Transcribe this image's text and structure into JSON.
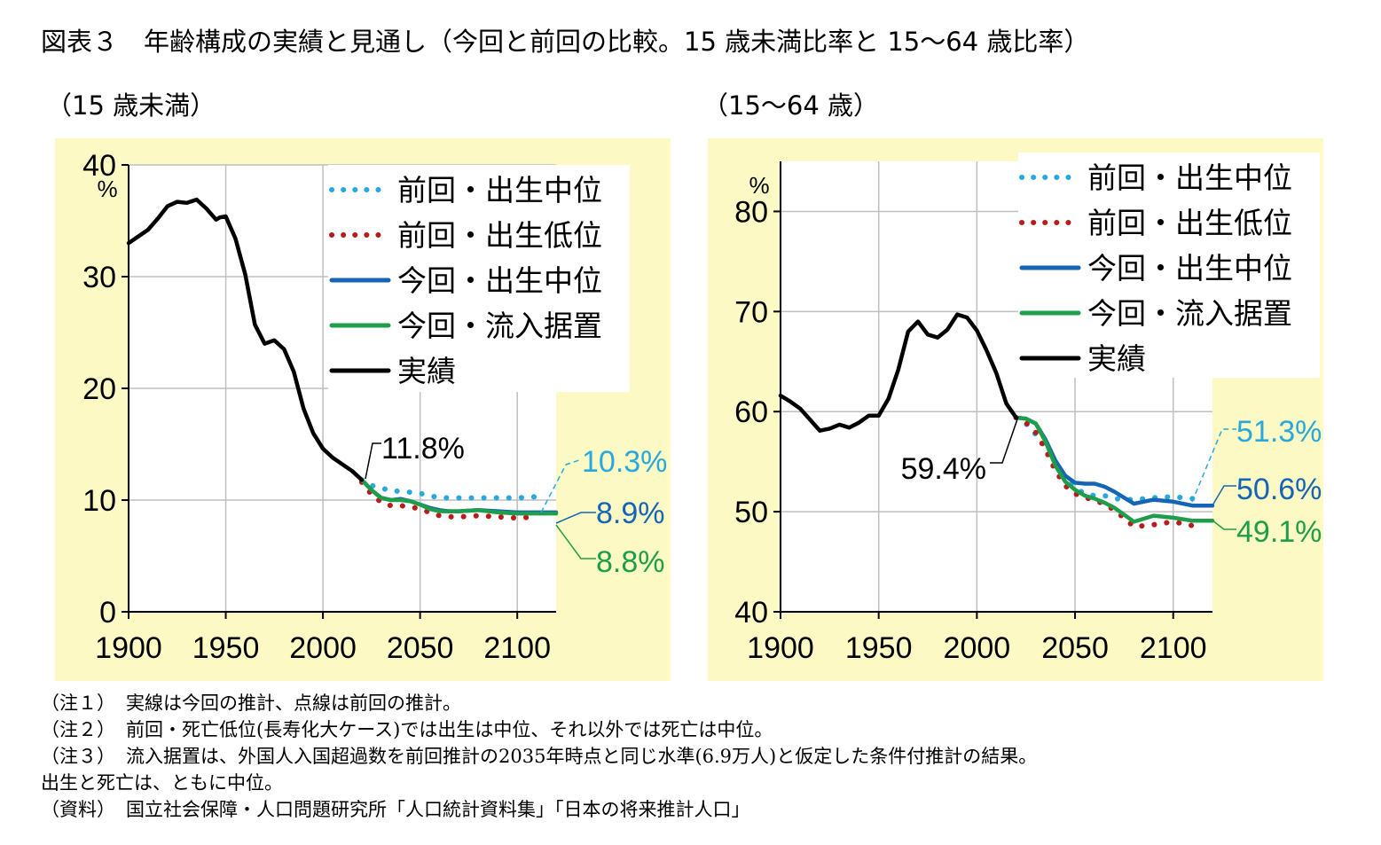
{
  "title": "図表３　年齢構成の実績と見通し（今回と前回の比較。15 歳未満比率と 15～64 歳比率）",
  "notes": [
    {
      "tag": "（注１）",
      "text": "実線は今回の推計、点線は前回の推計。"
    },
    {
      "tag": "（注２）",
      "text": "前回・死亡低位(長寿化大ケース)では出生は中位、それ以外では死亡は中位。"
    },
    {
      "tag": "（注３）",
      "text": "流入据置は、外国人入国超過数を前回推計の2035年時点と同じ水準(6.9万人)と仮定した条件付推計の結果。",
      "cont": "出生と死亡は、ともに中位。"
    },
    {
      "tag": "（資料）",
      "text": "国立社会保障・人口問題研究所「人口統計資料集」「日本の将来推計人口」"
    }
  ],
  "colors": {
    "panel_bg": "#fdf9c4",
    "prev_mid": "#29a8e0",
    "prev_low": "#b71c1c",
    "new_mid": "#1565b7",
    "new_fixed": "#1e9e4a",
    "actual": "#000000"
  },
  "chart_data": [
    {
      "type": "line",
      "title": "（15 歳未満）",
      "ylabel": "%",
      "xlim": [
        1900,
        2120
      ],
      "ylim": [
        0,
        40
      ],
      "xticks": [
        1900,
        1950,
        2000,
        2050,
        2100
      ],
      "yticks": [
        0,
        10,
        20,
        30,
        40
      ],
      "legend": [
        "前回・出生中位",
        "前回・出生低位",
        "今回・出生中位",
        "今回・流入据置",
        "実績"
      ],
      "legend_position": "top-right",
      "series": [
        {
          "name": "実績",
          "style": "solid",
          "color": "#000000",
          "x": [
            1900,
            1905,
            1910,
            1915,
            1920,
            1925,
            1930,
            1935,
            1940,
            1945,
            1947,
            1950,
            1955,
            1960,
            1965,
            1970,
            1975,
            1980,
            1985,
            1990,
            1995,
            2000,
            2005,
            2010,
            2015,
            2020
          ],
          "y": [
            33.0,
            33.6,
            34.2,
            35.2,
            36.3,
            36.7,
            36.6,
            36.9,
            36.1,
            35.1,
            35.3,
            35.4,
            33.4,
            30.2,
            25.7,
            24.0,
            24.3,
            23.5,
            21.5,
            18.2,
            16.0,
            14.6,
            13.8,
            13.2,
            12.6,
            11.8
          ]
        },
        {
          "name": "前回・出生中位",
          "style": "dotted",
          "color": "#29a8e0",
          "x": [
            2020,
            2025,
            2030,
            2035,
            2040,
            2045,
            2050,
            2055,
            2060,
            2065,
            2070,
            2080,
            2090,
            2100,
            2110
          ],
          "y": [
            11.8,
            11.3,
            11.1,
            10.8,
            10.8,
            10.7,
            10.6,
            10.4,
            10.2,
            10.2,
            10.2,
            10.2,
            10.2,
            10.2,
            10.3
          ]
        },
        {
          "name": "前回・出生低位",
          "style": "dotted",
          "color": "#b71c1c",
          "x": [
            2020,
            2025,
            2030,
            2035,
            2040,
            2045,
            2050,
            2055,
            2060,
            2065,
            2070,
            2080,
            2090,
            2100,
            2110
          ],
          "y": [
            11.6,
            10.5,
            9.8,
            9.5,
            9.5,
            9.4,
            9.2,
            8.9,
            8.6,
            8.5,
            8.5,
            8.6,
            8.5,
            8.4,
            8.5
          ]
        },
        {
          "name": "今回・出生中位",
          "style": "solid",
          "color": "#1565b7",
          "x": [
            2020,
            2025,
            2030,
            2035,
            2040,
            2045,
            2050,
            2055,
            2060,
            2065,
            2070,
            2080,
            2090,
            2100,
            2110,
            2120
          ],
          "y": [
            11.8,
            10.9,
            10.2,
            10.0,
            10.1,
            9.9,
            9.6,
            9.3,
            9.1,
            9.0,
            9.0,
            9.1,
            9.0,
            8.9,
            8.9,
            8.9
          ]
        },
        {
          "name": "今回・流入据置",
          "style": "solid",
          "color": "#1e9e4a",
          "x": [
            2020,
            2025,
            2030,
            2035,
            2040,
            2045,
            2050,
            2055,
            2060,
            2065,
            2070,
            2080,
            2090,
            2100,
            2110,
            2120
          ],
          "y": [
            11.8,
            10.9,
            10.2,
            10.0,
            10.0,
            9.9,
            9.6,
            9.2,
            9.0,
            9.0,
            9.0,
            9.1,
            8.9,
            8.8,
            8.8,
            8.8
          ]
        }
      ],
      "annotations": [
        {
          "text": "11.8%",
          "x": 2020,
          "y": 11.8,
          "color": "#000000"
        },
        {
          "text": "10.3%",
          "x": 2110,
          "y": 10.3,
          "color": "#29a8e0"
        },
        {
          "text": "8.9%",
          "x": 2120,
          "y": 8.9,
          "color": "#1565b7"
        },
        {
          "text": "8.8%",
          "x": 2120,
          "y": 8.8,
          "color": "#1e9e4a"
        }
      ]
    },
    {
      "type": "line",
      "title": "（15～64 歳）",
      "ylabel": "%",
      "xlim": [
        1900,
        2120
      ],
      "ylim": [
        40,
        85
      ],
      "xticks": [
        1900,
        1950,
        2000,
        2050,
        2100
      ],
      "yticks": [
        40,
        50,
        60,
        70,
        80
      ],
      "legend": [
        "前回・出生中位",
        "前回・出生低位",
        "今回・出生中位",
        "今回・流入据置",
        "実績"
      ],
      "legend_position": "top-right",
      "series": [
        {
          "name": "実績",
          "style": "solid",
          "color": "#000000",
          "x": [
            1900,
            1905,
            1910,
            1915,
            1920,
            1925,
            1930,
            1935,
            1940,
            1945,
            1950,
            1955,
            1960,
            1965,
            1970,
            1975,
            1980,
            1985,
            1990,
            1995,
            2000,
            2005,
            2010,
            2015,
            2020
          ],
          "y": [
            61.6,
            61.0,
            60.3,
            59.2,
            58.1,
            58.3,
            58.7,
            58.4,
            58.9,
            59.6,
            59.6,
            61.3,
            64.2,
            68.0,
            69.0,
            67.7,
            67.4,
            68.2,
            69.7,
            69.4,
            68.1,
            66.1,
            63.8,
            60.8,
            59.4
          ]
        },
        {
          "name": "前回・出生中位",
          "style": "dotted",
          "color": "#29a8e0",
          "x": [
            2020,
            2025,
            2030,
            2035,
            2040,
            2045,
            2050,
            2055,
            2060,
            2065,
            2070,
            2080,
            2090,
            2100,
            2110
          ],
          "y": [
            59.4,
            58.8,
            57.7,
            56.4,
            54.6,
            53.3,
            52.4,
            51.8,
            51.6,
            51.6,
            51.3,
            51.2,
            51.4,
            51.5,
            51.3
          ]
        },
        {
          "name": "前回・出生低位",
          "style": "dotted",
          "color": "#b71c1c",
          "x": [
            2020,
            2025,
            2030,
            2035,
            2040,
            2045,
            2050,
            2055,
            2060,
            2065,
            2070,
            2080,
            2090,
            2100,
            2110
          ],
          "y": [
            59.4,
            58.9,
            57.9,
            56.2,
            54.1,
            52.6,
            51.8,
            51.4,
            51.2,
            50.7,
            50.2,
            48.5,
            48.7,
            49.0,
            48.6
          ]
        },
        {
          "name": "今回・出生中位",
          "style": "solid",
          "color": "#1565b7",
          "x": [
            2020,
            2025,
            2030,
            2035,
            2040,
            2045,
            2050,
            2055,
            2060,
            2065,
            2070,
            2080,
            2090,
            2100,
            2110,
            2120
          ],
          "y": [
            59.4,
            59.3,
            58.8,
            57.2,
            55.1,
            53.6,
            52.9,
            52.8,
            52.8,
            52.5,
            52.0,
            50.8,
            51.2,
            51.0,
            50.6,
            50.6
          ]
        },
        {
          "name": "今回・流入据置",
          "style": "solid",
          "color": "#1e9e4a",
          "x": [
            2020,
            2025,
            2030,
            2035,
            2040,
            2045,
            2050,
            2055,
            2060,
            2065,
            2070,
            2080,
            2090,
            2100,
            2110,
            2120
          ],
          "y": [
            59.4,
            59.3,
            58.8,
            57.0,
            54.6,
            53.0,
            52.2,
            51.6,
            51.3,
            50.9,
            50.4,
            49.0,
            49.6,
            49.4,
            49.1,
            49.1
          ]
        }
      ],
      "annotations": [
        {
          "text": "59.4%",
          "x": 2020,
          "y": 59.4,
          "color": "#000000"
        },
        {
          "text": "51.3%",
          "x": 2110,
          "y": 51.3,
          "color": "#29a8e0"
        },
        {
          "text": "50.6%",
          "x": 2120,
          "y": 50.6,
          "color": "#1565b7"
        },
        {
          "text": "49.1%",
          "x": 2120,
          "y": 49.1,
          "color": "#1e9e4a"
        }
      ]
    }
  ]
}
